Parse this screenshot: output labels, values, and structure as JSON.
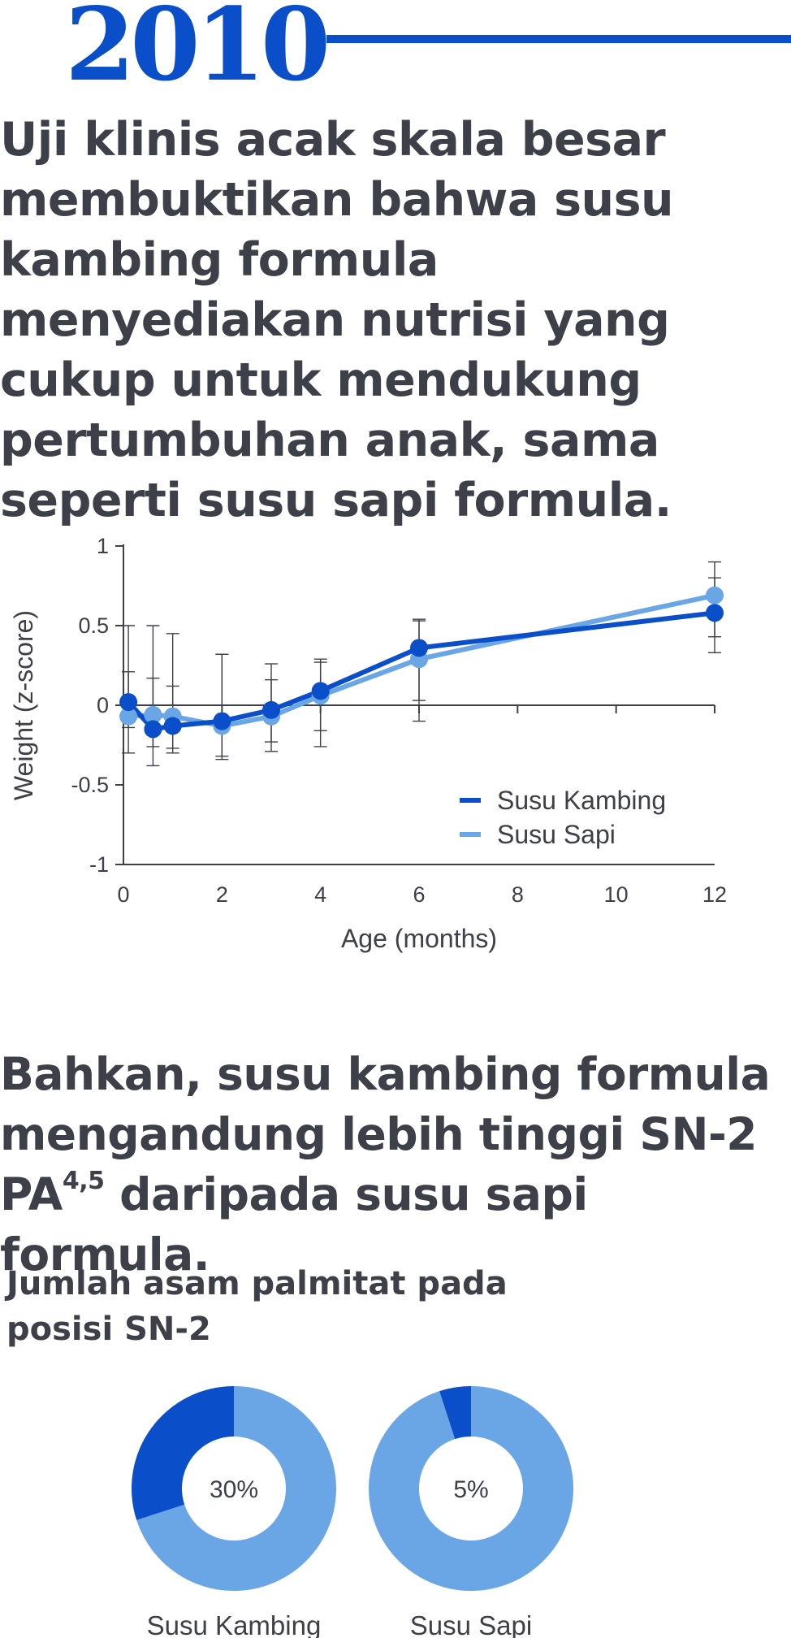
{
  "year": "2010",
  "headline": "Uji klinis acak skala besar membuktikan bahwa susu kambing formula menyediakan nutrisi yang cukup untuk mendukung pertumbuhan anak, sama seperti susu sapi formula.",
  "subheadline": {
    "before": "Bahkan, susu kambing formula mengandung lebih tinggi SN-2 PA",
    "superscript": "4,5",
    "after": " daripada susu sapi formula."
  },
  "donut_caption": "Jumlah asam palmitat pada posisi SN-2",
  "colors": {
    "dark_blue": "#0a4fc9",
    "light_blue": "#6aa5e6",
    "text": "#3d4048"
  },
  "chart_data": [
    {
      "type": "line",
      "title": "",
      "xlabel": "Age (months)",
      "ylabel": "Weight (z-score)",
      "xlim": [
        0,
        12
      ],
      "ylim": [
        -1,
        1
      ],
      "x_ticks": [
        "0",
        "2",
        "4",
        "6",
        "8",
        "10",
        "12"
      ],
      "y_ticks": [
        "1",
        "0.5",
        "0",
        "-0.5",
        "-1"
      ],
      "legend_position": "bottom-right",
      "series": [
        {
          "name": "Susu Kambing",
          "color": "#0a4fc9",
          "x": [
            0.1,
            0.6,
            1.0,
            2.0,
            3.0,
            4.0,
            6.0,
            12.0
          ],
          "y": [
            0.02,
            -0.15,
            -0.13,
            -0.1,
            -0.03,
            0.09,
            0.36,
            0.58
          ],
          "err_low": [
            -0.3,
            -0.38,
            -0.3,
            -0.34,
            -0.29,
            -0.16,
            -0.1,
            0.33
          ],
          "err_high": [
            0.21,
            0.17,
            0.12,
            0.32,
            0.26,
            0.29,
            0.54,
            0.8
          ]
        },
        {
          "name": "Susu Sapi",
          "color": "#6aa5e6",
          "x": [
            0.1,
            0.6,
            1.0,
            2.0,
            3.0,
            4.0,
            6.0,
            12.0
          ],
          "y": [
            -0.07,
            -0.06,
            -0.07,
            -0.13,
            -0.07,
            0.06,
            0.29,
            0.69
          ],
          "err_low": [
            -0.14,
            -0.26,
            -0.27,
            -0.32,
            -0.23,
            -0.26,
            0.03,
            0.43
          ],
          "err_high": [
            0.5,
            0.5,
            0.45,
            0.32,
            0.16,
            0.27,
            0.53,
            0.9
          ]
        }
      ]
    },
    {
      "type": "pie",
      "slices": [
        {
          "name": "Susu Kambing",
          "value": 30,
          "label": "30%"
        },
        {
          "name": "Susu Sapi",
          "value": 5,
          "label": "5%"
        }
      ]
    }
  ]
}
